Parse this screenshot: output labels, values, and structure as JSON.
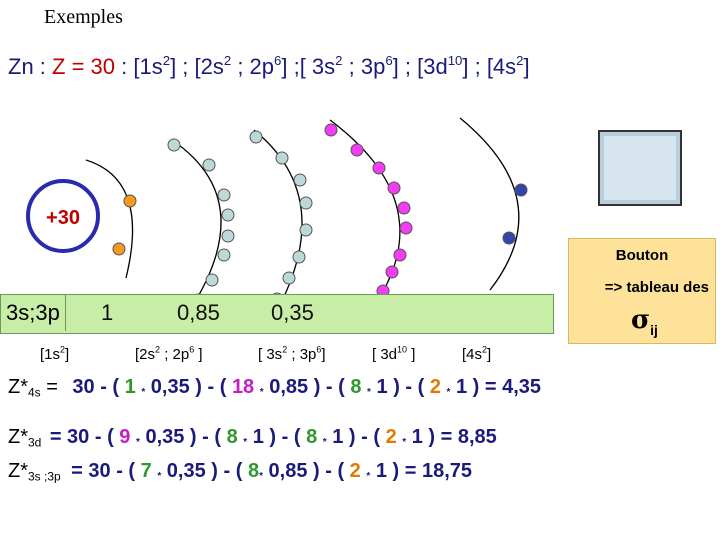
{
  "header": {
    "title": "Exemples"
  },
  "config": {
    "element": "Zn",
    "sep1": " : ",
    "z": "Z = 30",
    "sep2": " : ",
    "g1": "[1s",
    "g1e": "2",
    "g1c": "] ; [2s",
    "g2e": "2",
    "g2m": " ; 2p",
    "g2e2": "6",
    "g2c": "] ;[ 3s",
    "g3e": "2",
    "g3m": " ; 3p",
    "g3e2": "6",
    "g3c": "] ; [3d",
    "g4e": "10",
    "g4c": "] ; [4s",
    "g5e": "2",
    "g5c": "]"
  },
  "nucleus": {
    "label": "+30"
  },
  "button": {
    "title": "Bouton",
    "text": "=> tableau des",
    "sigma": "σ",
    "sigma_sub": "ij"
  },
  "sigma_row": {
    "label": "3s;3p",
    "v1": "1",
    "v2": "0,85",
    "v3": "0,35"
  },
  "groups": {
    "g1": "[1s",
    "g1e": "2",
    "g1c": "]",
    "g2": "[2s",
    "g2e": "2",
    "g2m": " ; 2p",
    "g2e2": "6",
    "g2c": " ]",
    "g3": "[ 3s",
    "g3e": "2",
    "g3m": " ; 3p",
    "g3e2": "6",
    "g3c": "]",
    "g4": "[ 3d",
    "g4e": "10",
    "g4c": " ]",
    "g5": "[4s",
    "g5e": "2",
    "g5c": "]"
  },
  "eq_4s": {
    "label": "Z*",
    "sub": "4s",
    "eqsign": " =",
    "a": "30 - ( ",
    "n1": "1",
    "t1": " 0,35 ) - ( ",
    "n2": "18",
    "t2": " 0,85 ) - ( ",
    "n3": "8",
    "t3": " 1 ) - ( ",
    "n4": "2",
    "t4": " 1 ) = 4,35"
  },
  "eq_3d": {
    "label": "Z*",
    "sub": "3d",
    "a": " = 30 - ( ",
    "n1": "9",
    "t1": " 0,35 ) - ( ",
    "n2": "8",
    "t2": " 1 ) - ( ",
    "n3": "8",
    "t3": " 1 ) - ( ",
    "n4": "2",
    "t4": " 1 ) = 8,85"
  },
  "eq_3s3p": {
    "label": "Z*",
    "sub": "3s ;3p",
    "a": " = 30 - ( ",
    "n1": "7",
    "t1": " 0,35 ) - ( ",
    "n2": "8",
    "t2": " 0,85 ) - ( ",
    "n3": "2",
    "t3": " 1 ) = 18,75"
  },
  "times": "*",
  "colors": {
    "text_blue": "#1a1a7a",
    "z_red": "#c00000",
    "orange": "#f39a1c",
    "teal": "#bcd9d9",
    "magenta": "#f43cf4",
    "navy": "#3344aa",
    "green": "#2e9a2e",
    "pink": "#c41ec4"
  }
}
